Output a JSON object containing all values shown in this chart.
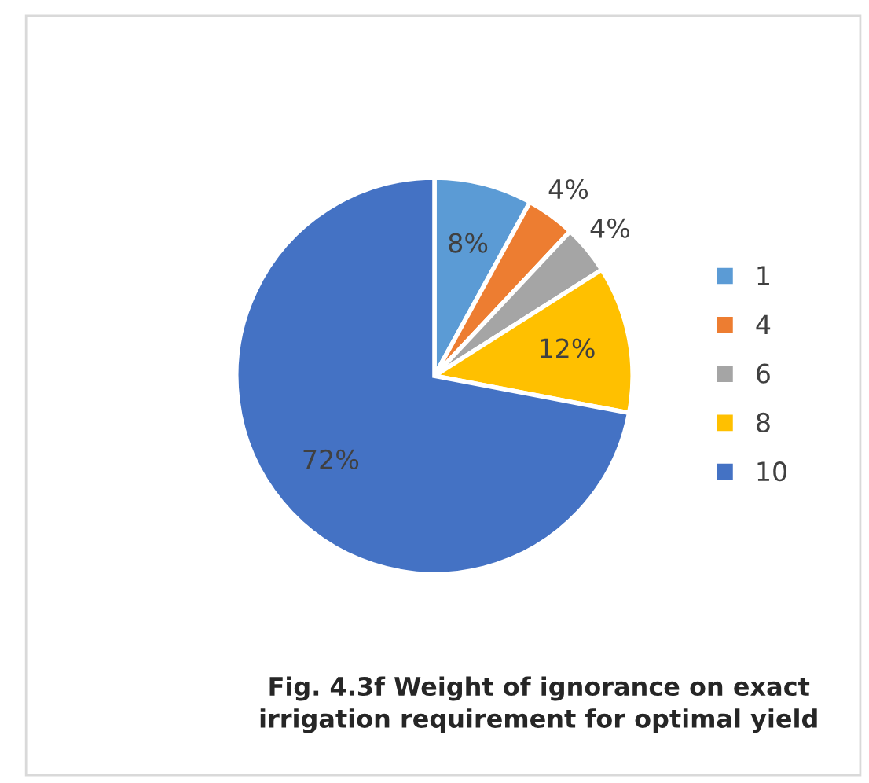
{
  "chart_data": {
    "type": "pie",
    "title": "Fig. 4.3f Weight of ignorance on exact irrigation requirement for optimal yield",
    "categories": [
      "1",
      "4",
      "6",
      "8",
      "10"
    ],
    "values": [
      8,
      4,
      4,
      12,
      72
    ],
    "colors": [
      "#5b9bd5",
      "#ed7d31",
      "#a5a5a5",
      "#ffc000",
      "#4472c4"
    ],
    "value_labels": [
      "8%",
      "4%",
      "4%",
      "12%",
      "72%"
    ],
    "legend": "right"
  }
}
